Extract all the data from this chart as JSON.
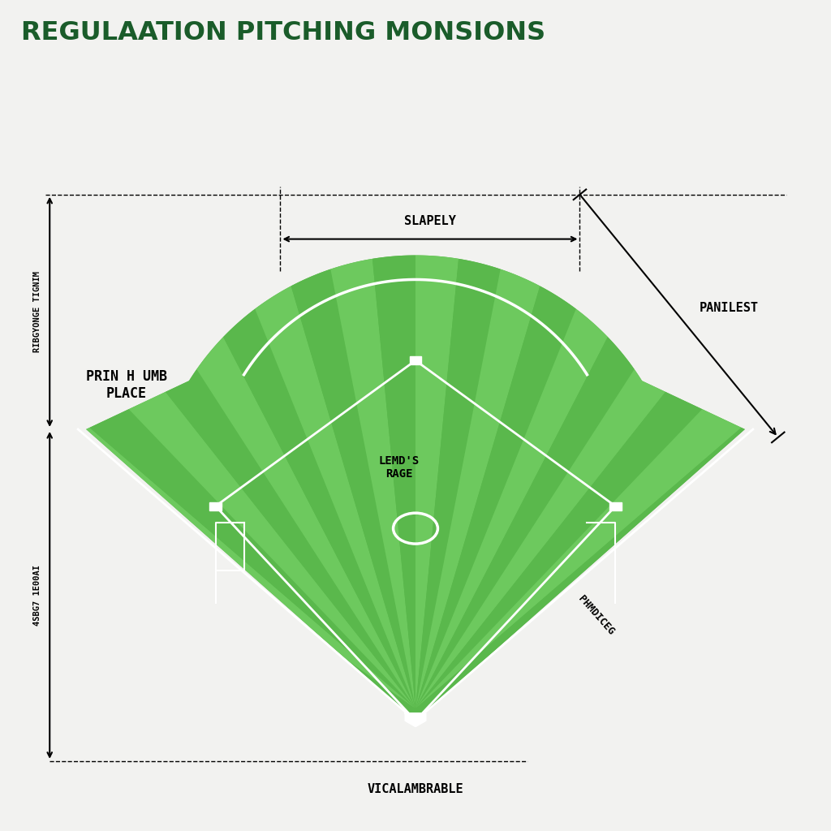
{
  "title": "REGULAATION PITCHING MONSIONS",
  "title_color": "#1a5c2a",
  "background_color": "#f2f2f0",
  "field_green_light": "#6dc95e",
  "field_green_mid": "#5ab84c",
  "field_green_stripe": "#7dd96e",
  "white_line": "#ffffff",
  "label_left_vertical": "RIBGYONGE TIGNIM",
  "label_left_bottom": "4SBG7 1E00AI",
  "label_top": "SLAPELY",
  "label_right_diagonal": "PANILEST",
  "label_center_top": "LEMD'S\nRAGE",
  "label_field_left": "PRIN H UMB\nPLACE",
  "label_bottom": "VICALAMBRABLE",
  "label_diagonal_right": "PHMDICEG"
}
